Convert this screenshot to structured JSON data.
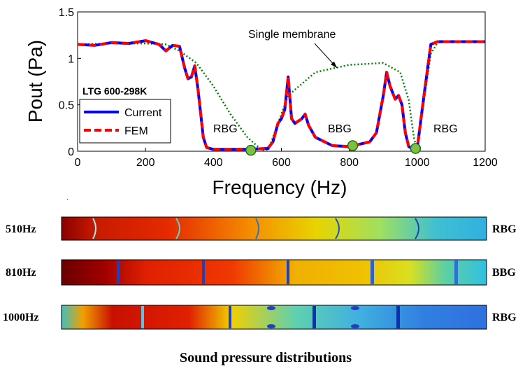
{
  "chart_data": {
    "type": "line",
    "title": "",
    "xlabel": "Frequency (Hz)",
    "ylabel": "Pout (Pa)",
    "xlim": [
      0,
      1200
    ],
    "ylim": [
      0,
      1.5
    ],
    "x_ticks": [
      "0",
      "200",
      "400",
      "600",
      "800",
      "1000",
      "1200"
    ],
    "y_ticks": [
      "0",
      "0.5",
      "1",
      "1.5"
    ],
    "grid": false,
    "legend": {
      "title": "LTG 600-298K",
      "placement": "left",
      "entries": [
        "Current",
        "FEM"
      ]
    },
    "series": [
      {
        "name": "Current",
        "color": "#0000ff",
        "style": "solid",
        "x": [
          0,
          50,
          100,
          150,
          200,
          240,
          260,
          280,
          300,
          315,
          325,
          335,
          345,
          355,
          370,
          380,
          400,
          500,
          560,
          575,
          590,
          600,
          610,
          620,
          630,
          640,
          660,
          670,
          680,
          700,
          750,
          800,
          860,
          880,
          900,
          910,
          920,
          935,
          945,
          955,
          965,
          975,
          985,
          1000,
          1020,
          1040,
          1060,
          1100,
          1150,
          1200
        ],
        "y": [
          1.15,
          1.14,
          1.17,
          1.16,
          1.19,
          1.15,
          1.08,
          1.14,
          1.13,
          0.9,
          0.78,
          0.8,
          0.92,
          0.65,
          0.15,
          0.04,
          0.02,
          0.02,
          0.03,
          0.1,
          0.3,
          0.35,
          0.45,
          0.8,
          0.35,
          0.3,
          0.35,
          0.4,
          0.28,
          0.15,
          0.06,
          0.05,
          0.1,
          0.2,
          0.6,
          0.85,
          0.7,
          0.56,
          0.6,
          0.5,
          0.2,
          0.05,
          0.03,
          0.03,
          0.6,
          1.15,
          1.18,
          1.18,
          1.18,
          1.18
        ]
      },
      {
        "name": "FEM",
        "color": "#ff0000",
        "style": "dashed",
        "x": [
          0,
          50,
          100,
          150,
          200,
          240,
          260,
          280,
          300,
          315,
          325,
          335,
          345,
          355,
          370,
          380,
          400,
          500,
          560,
          575,
          590,
          600,
          610,
          620,
          630,
          640,
          660,
          670,
          680,
          700,
          750,
          800,
          860,
          880,
          900,
          910,
          920,
          935,
          945,
          955,
          965,
          975,
          985,
          1000,
          1020,
          1040,
          1060,
          1100,
          1150,
          1200
        ],
        "y": [
          1.15,
          1.14,
          1.17,
          1.16,
          1.19,
          1.15,
          1.08,
          1.14,
          1.13,
          0.9,
          0.78,
          0.8,
          0.92,
          0.65,
          0.15,
          0.04,
          0.02,
          0.02,
          0.03,
          0.1,
          0.3,
          0.35,
          0.45,
          0.8,
          0.35,
          0.3,
          0.35,
          0.4,
          0.28,
          0.15,
          0.06,
          0.05,
          0.1,
          0.2,
          0.6,
          0.85,
          0.7,
          0.56,
          0.6,
          0.5,
          0.2,
          0.05,
          0.03,
          0.03,
          0.6,
          1.15,
          1.18,
          1.18,
          1.18,
          1.18
        ]
      },
      {
        "name": "Single membrane",
        "color": "#008000",
        "style": "dotted",
        "x": [
          0,
          100,
          200,
          260,
          300,
          350,
          400,
          450,
          500,
          540,
          560,
          580,
          620,
          700,
          800,
          900,
          950,
          975,
          990,
          1000,
          1020,
          1040,
          1060,
          1100,
          1200
        ],
        "y": [
          1.15,
          1.16,
          1.16,
          1.15,
          1.08,
          0.95,
          0.7,
          0.4,
          0.15,
          0.02,
          0.0,
          0.2,
          0.6,
          0.85,
          0.93,
          0.95,
          0.85,
          0.55,
          0.15,
          0.0,
          0.55,
          1.05,
          1.17,
          1.18,
          1.18
        ]
      }
    ],
    "markers": [
      {
        "x": 510,
        "y": 0.01,
        "color": "#7cc242"
      },
      {
        "x": 810,
        "y": 0.06,
        "color": "#7cc242"
      },
      {
        "x": 995,
        "y": 0.03,
        "color": "#7cc242"
      }
    ],
    "annotations": {
      "single_membrane": "Single membrane",
      "rbg_left": "RBG",
      "bbg": "BBG",
      "rbg_right": "RBG"
    }
  },
  "distributions": {
    "caption": "Sound pressure distributions",
    "rows": [
      {
        "freq_label": "510Hz",
        "band_label": "RBG"
      },
      {
        "freq_label": "810Hz",
        "band_label": "BBG"
      },
      {
        "freq_label": "1000Hz",
        "band_label": "RBG"
      }
    ]
  },
  "colors": {
    "current": "#0000ff",
    "fem": "#ff0000",
    "single": "#008000",
    "marker": "#7cc242"
  }
}
